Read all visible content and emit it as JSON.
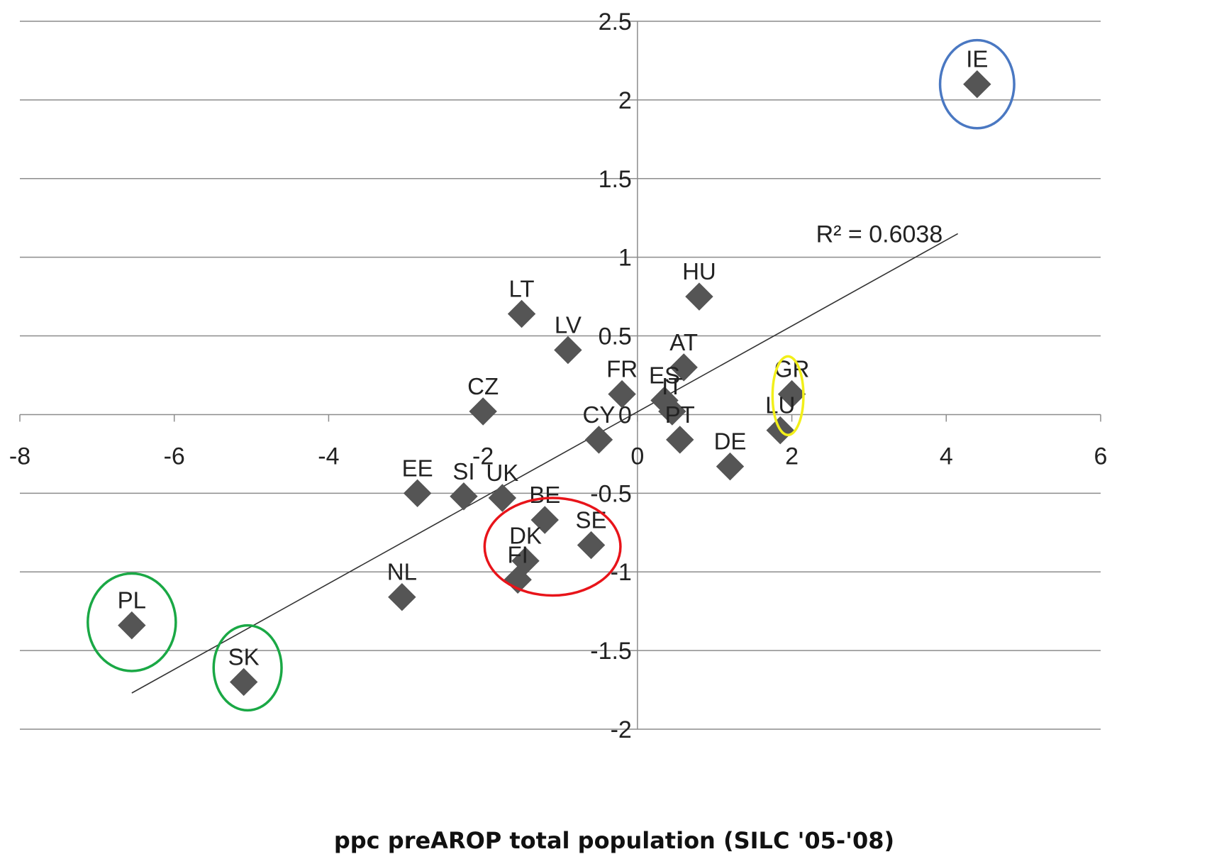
{
  "chart_data": {
    "type": "scatter",
    "title": "",
    "xlabel": "ppc preAROP total population (SILC '05-'08)",
    "ylabel": "",
    "xlim": [
      -8,
      6
    ],
    "ylim": [
      -2,
      2.5
    ],
    "x_ticks": [
      -8,
      -6,
      -4,
      -2,
      0,
      2,
      4,
      6
    ],
    "x_tick_labels": [
      "-8",
      "-6",
      "-4",
      "-2",
      "0",
      "2",
      "4",
      "6"
    ],
    "y_ticks": [
      -2,
      -1.5,
      -1,
      -0.5,
      0,
      0.5,
      1,
      1.5,
      2,
      2.5
    ],
    "y_tick_labels": [
      "-2",
      "-1.5",
      "-1",
      "-0.5",
      "0",
      "0.5",
      "1",
      "1.5",
      "2",
      "2.5"
    ],
    "grid": "horizontal",
    "points": [
      {
        "label": "IE",
        "x": 4.4,
        "y": 2.1
      },
      {
        "label": "HU",
        "x": 0.8,
        "y": 0.75
      },
      {
        "label": "LT",
        "x": -1.5,
        "y": 0.64
      },
      {
        "label": "LV",
        "x": -0.9,
        "y": 0.41
      },
      {
        "label": "AT",
        "x": 0.6,
        "y": 0.3
      },
      {
        "label": "GR",
        "x": 2.0,
        "y": 0.13
      },
      {
        "label": "FR",
        "x": -0.2,
        "y": 0.13
      },
      {
        "label": "ES",
        "x": 0.35,
        "y": 0.09
      },
      {
        "label": "IT",
        "x": 0.45,
        "y": 0.02
      },
      {
        "label": "CZ",
        "x": -2.0,
        "y": 0.02
      },
      {
        "label": "LU",
        "x": 1.85,
        "y": -0.1
      },
      {
        "label": "CY",
        "x": -0.5,
        "y": -0.16
      },
      {
        "label": "PT",
        "x": 0.55,
        "y": -0.16
      },
      {
        "label": "DE",
        "x": 1.2,
        "y": -0.33
      },
      {
        "label": "EE",
        "x": -2.85,
        "y": -0.5
      },
      {
        "label": "SI",
        "x": -2.25,
        "y": -0.52
      },
      {
        "label": "UK",
        "x": -1.75,
        "y": -0.53
      },
      {
        "label": "BE",
        "x": -1.2,
        "y": -0.67
      },
      {
        "label": "SE",
        "x": -0.6,
        "y": -0.83
      },
      {
        "label": "DK",
        "x": -1.45,
        "y": -0.93
      },
      {
        "label": "FI",
        "x": -1.55,
        "y": -1.05
      },
      {
        "label": "NL",
        "x": -3.05,
        "y": -1.16
      },
      {
        "label": "PL",
        "x": -6.55,
        "y": -1.34
      },
      {
        "label": "SK",
        "x": -5.1,
        "y": -1.7
      }
    ],
    "trendline": {
      "x": [
        -6.55,
        4.15
      ],
      "y": [
        -1.77,
        1.15
      ],
      "label": "R² = 0.6038"
    },
    "highlights": [
      {
        "cx": 4.4,
        "cy": 2.1,
        "rx": 0.48,
        "ry": 0.28,
        "color": "#4a78c2"
      },
      {
        "cx": 1.95,
        "cy": 0.12,
        "rx": 0.2,
        "ry": 0.25,
        "color": "#f2ef1a"
      },
      {
        "cx": -1.1,
        "cy": -0.84,
        "rx": 0.88,
        "ry": 0.31,
        "color": "#e8141a"
      },
      {
        "cx": -6.55,
        "cy": -1.32,
        "rx": 0.57,
        "ry": 0.31,
        "color": "#1aa845"
      },
      {
        "cx": -5.05,
        "cy": -1.61,
        "rx": 0.44,
        "ry": 0.27,
        "color": "#1aa845"
      }
    ],
    "colors": {
      "marker": "#555555",
      "grid": "#8c8c8c"
    }
  }
}
